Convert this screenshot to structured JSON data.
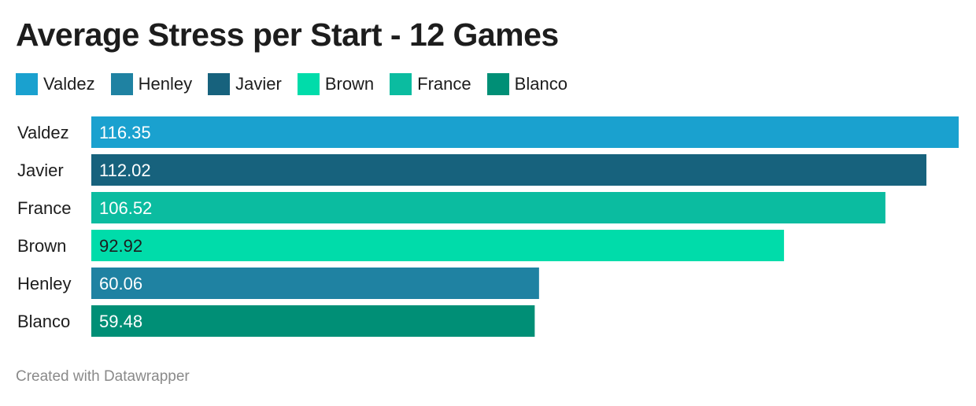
{
  "chart_data": {
    "type": "bar",
    "orientation": "horizontal",
    "title": "Average Stress per Start - 12 Games",
    "xlabel": "",
    "ylabel": "",
    "xlim": [
      0,
      116.35
    ],
    "grid": false,
    "legend_position": "top-left",
    "categories": [
      "Valdez",
      "Javier",
      "France",
      "Brown",
      "Henley",
      "Blanco"
    ],
    "values": [
      116.35,
      112.02,
      106.52,
      92.92,
      60.06,
      59.48
    ],
    "value_labels": [
      "116.35",
      "112.02",
      "106.52",
      "92.92",
      "60.06",
      "59.48"
    ],
    "bar_colors": [
      "#1aa1cf",
      "#17627d",
      "#0bbca0",
      "#00dcaa",
      "#1f82a2",
      "#008f76"
    ],
    "value_label_colors": [
      "#ffffff",
      "#ffffff",
      "#ffffff",
      "#1d1d1d",
      "#ffffff",
      "#ffffff"
    ],
    "legend": [
      {
        "name": "Valdez",
        "color": "#1aa1cf"
      },
      {
        "name": "Henley",
        "color": "#1f82a2"
      },
      {
        "name": "Javier",
        "color": "#17627d"
      },
      {
        "name": "Brown",
        "color": "#00dcaa"
      },
      {
        "name": "France",
        "color": "#0bbca0"
      },
      {
        "name": "Blanco",
        "color": "#008f76"
      }
    ]
  },
  "footer": {
    "credit": "Created with Datawrapper"
  }
}
